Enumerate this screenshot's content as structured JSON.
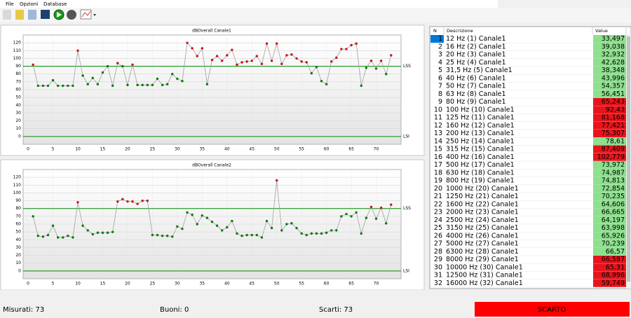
{
  "menu": [
    "File",
    "Opzioni",
    "Database"
  ],
  "chart_data": [
    {
      "type": "line",
      "title": "dBOverall Canale1",
      "x": [
        1,
        2,
        3,
        4,
        5,
        6,
        7,
        8,
        9,
        10,
        11,
        12,
        13,
        14,
        15,
        16,
        17,
        18,
        19,
        20,
        21,
        22,
        23,
        24,
        25,
        26,
        27,
        28,
        29,
        30,
        31,
        32,
        33,
        34,
        35,
        36,
        37,
        38,
        39,
        40,
        41,
        42,
        43,
        44,
        45,
        46,
        47,
        48,
        49,
        50,
        51,
        52,
        53,
        54,
        55,
        56,
        57,
        58,
        59,
        60,
        61,
        62,
        63,
        64,
        65,
        66,
        67,
        68,
        69,
        70,
        71,
        72,
        73
      ],
      "values": [
        92,
        65,
        65,
        65,
        72,
        65,
        65,
        65,
        65,
        110,
        78,
        67,
        75,
        67,
        82,
        90,
        65,
        94,
        90,
        66,
        92,
        66,
        66,
        66,
        66,
        74,
        66,
        67,
        80,
        74,
        71,
        120,
        113,
        103,
        113,
        67,
        98,
        103,
        97,
        104,
        111,
        92,
        95,
        96,
        97,
        103,
        93,
        119,
        97,
        119,
        93,
        104,
        105,
        100,
        96,
        95,
        81,
        89,
        71,
        67,
        96,
        101,
        112,
        112,
        117,
        119,
        65,
        88,
        97,
        87,
        97,
        80,
        104
      ],
      "xlim": [
        -1,
        75
      ],
      "xticks": [
        0,
        5,
        10,
        15,
        20,
        25,
        30,
        35,
        40,
        45,
        50,
        55,
        60,
        65,
        70
      ],
      "ylim": [
        -10,
        130
      ],
      "yticks": [
        0,
        10,
        20,
        30,
        40,
        50,
        60,
        70,
        80,
        90,
        100,
        110,
        120
      ],
      "grid": true,
      "limits": [
        {
          "label": "LSS",
          "value": 90
        },
        {
          "label": "LSI",
          "value": 0
        }
      ],
      "line_color": "#a0a0a0",
      "limit_color": "#008a00",
      "above_color": "#cc1010",
      "below_color": "#0a7a0a"
    },
    {
      "type": "line",
      "title": "dBOverall Canale2",
      "x": [
        1,
        2,
        3,
        4,
        5,
        6,
        7,
        8,
        9,
        10,
        11,
        12,
        13,
        14,
        15,
        16,
        17,
        18,
        19,
        20,
        21,
        22,
        23,
        24,
        25,
        26,
        27,
        28,
        29,
        30,
        31,
        32,
        33,
        34,
        35,
        36,
        37,
        38,
        39,
        40,
        41,
        42,
        43,
        44,
        45,
        46,
        47,
        48,
        49,
        50,
        51,
        52,
        53,
        54,
        55,
        56,
        57,
        58,
        59,
        60,
        61,
        62,
        63,
        64,
        65,
        66,
        67,
        68,
        69,
        70,
        71,
        72,
        73
      ],
      "values": [
        70,
        45,
        44,
        46,
        58,
        43,
        43,
        45,
        43,
        88,
        58,
        52,
        47,
        49,
        49,
        49,
        50,
        89,
        92,
        89,
        89,
        86,
        90,
        90,
        46,
        46,
        45,
        45,
        44,
        57,
        54,
        75,
        72,
        60,
        71,
        68,
        63,
        58,
        52,
        56,
        64,
        48,
        45,
        46,
        46,
        46,
        43,
        64,
        55,
        116,
        52,
        60,
        61,
        55,
        48,
        46,
        48,
        48,
        48,
        49,
        52,
        52,
        70,
        73,
        70,
        75,
        48,
        68,
        82,
        67,
        81,
        61,
        85
      ],
      "xlim": [
        -1,
        75
      ],
      "xticks": [
        0,
        5,
        10,
        15,
        20,
        25,
        30,
        35,
        40,
        45,
        50,
        55,
        60,
        65,
        70
      ],
      "ylim": [
        -10,
        130
      ],
      "yticks": [
        0,
        10,
        20,
        30,
        40,
        50,
        60,
        70,
        80,
        90,
        100,
        110,
        120
      ],
      "grid": true,
      "limits": [
        {
          "label": "LSS",
          "value": 80
        },
        {
          "label": "LSI",
          "value": 0
        }
      ],
      "line_color": "#a0a0a0",
      "limit_color": "#008a00",
      "above_color": "#cc1010",
      "below_color": "#0a7a0a"
    }
  ],
  "table": {
    "columns": [
      "N",
      "Descrizione",
      "Value"
    ],
    "rows": [
      [
        1,
        "12 Hz (1) Canale1",
        "33,497"
      ],
      [
        2,
        "16 Hz (2) Canale1",
        "39,038"
      ],
      [
        3,
        "20 Hz (3) Canale1",
        "32,932"
      ],
      [
        4,
        "25 Hz (4) Canale1",
        "42,628"
      ],
      [
        5,
        "31,5 Hz (5) Canale1",
        "38,348"
      ],
      [
        6,
        "40 Hz (6) Canale1",
        "43,996"
      ],
      [
        7,
        "50 Hz (7) Canale1",
        "54,357"
      ],
      [
        8,
        "63 Hz (8) Canale1",
        "56,451"
      ],
      [
        9,
        "80 Hz (9) Canale1",
        "65,243"
      ],
      [
        10,
        "100 Hz (10) Canale1",
        "92,43"
      ],
      [
        11,
        "125 Hz (11) Canale1",
        "81,168"
      ],
      [
        12,
        "160 Hz (12) Canale1",
        "77,421"
      ],
      [
        13,
        "200 Hz (13) Canale1",
        "75,307"
      ],
      [
        14,
        "250 Hz (14) Canale1",
        "78,61"
      ],
      [
        15,
        "315 Hz (15) Canale1",
        "87,409"
      ],
      [
        16,
        "400 Hz (16) Canale1",
        "102,779"
      ],
      [
        17,
        "500 Hz (17) Canale1",
        "73,972"
      ],
      [
        18,
        "630 Hz (18) Canale1",
        "74,987"
      ],
      [
        19,
        "800 Hz (19) Canale1",
        "74,813"
      ],
      [
        20,
        "1000 Hz (20) Canale1",
        "72,854"
      ],
      [
        21,
        "1250 Hz (21) Canale1",
        "70,235"
      ],
      [
        22,
        "1600 Hz (22) Canale1",
        "64,606"
      ],
      [
        23,
        "2000 Hz (23) Canale1",
        "66,665"
      ],
      [
        24,
        "2500 Hz (24) Canale1",
        "64,197"
      ],
      [
        25,
        "3150 Hz (25) Canale1",
        "63,998"
      ],
      [
        26,
        "4000 Hz (26) Canale1",
        "65,926"
      ],
      [
        27,
        "5000 Hz (27) Canale1",
        "70,239"
      ],
      [
        28,
        "6300 Hz (28) Canale1",
        "66,57"
      ],
      [
        29,
        "8000 Hz (29) Canale1",
        "66,587"
      ],
      [
        30,
        "10000 Hz (30) Canale1",
        "65,31"
      ],
      [
        31,
        "12500 Hz (31) Canale1",
        "68,996"
      ],
      [
        32,
        "16000 Hz (32) Canale1",
        "59,749"
      ]
    ],
    "value_colors": [
      "#8de08d",
      "#8de08d",
      "#8de08d",
      "#8de08d",
      "#8de08d",
      "#8de08d",
      "#8de08d",
      "#8de08d",
      "#e8141b",
      "#e8141b",
      "#e8141b",
      "#e8141b",
      "#e8141b",
      "#8de08d",
      "#e8141b",
      "#e8141b",
      "#8de08d",
      "#8de08d",
      "#8de08d",
      "#8de08d",
      "#8de08d",
      "#8de08d",
      "#8de08d",
      "#8de08d",
      "#8de08d",
      "#8de08d",
      "#8de08d",
      "#8de08d",
      "#e8141b",
      "#e8141b",
      "#e8141b",
      "#e8141b"
    ]
  },
  "status": [
    {
      "label": "Misurati:",
      "value": 73
    },
    {
      "label": "Buoni:",
      "value": 0
    },
    {
      "label": "Scarti:",
      "value": 73
    }
  ],
  "result": {
    "label": "SCARTO",
    "color": "#ff0000"
  }
}
